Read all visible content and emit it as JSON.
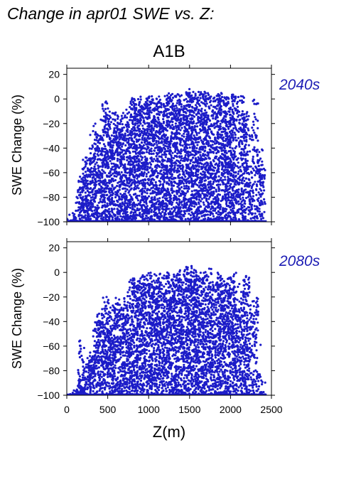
{
  "page": {
    "title": "Change in apr01 SWE vs. Z:",
    "scenario": "A1B"
  },
  "colors": {
    "points": "#1c1cc8",
    "label": "#1c1cb4",
    "axis": "#000000"
  },
  "chart_data": [
    {
      "type": "scatter",
      "period_label": "2040s",
      "ylabel": "SWE Change (%)",
      "xlim": [
        0,
        2500
      ],
      "ylim": [
        -100,
        25
      ],
      "xticks": [
        0,
        500,
        1000,
        1500,
        2000,
        2500
      ],
      "yticks": [
        -100,
        -80,
        -60,
        -40,
        -20,
        0,
        20
      ],
      "x_tick_labels_shown": false,
      "grid": false,
      "point_bands": [
        {
          "x": 60,
          "y_top": -97
        },
        {
          "x": 95,
          "y_top": -93
        },
        {
          "x": 120,
          "y_top": -90
        },
        {
          "x": 150,
          "y_top": -73
        },
        {
          "x": 175,
          "y_top": -63
        },
        {
          "x": 200,
          "y_top": -55
        },
        {
          "x": 230,
          "y_top": -60
        },
        {
          "x": 260,
          "y_top": -47
        },
        {
          "x": 290,
          "y_top": -40
        },
        {
          "x": 320,
          "y_top": -40
        },
        {
          "x": 350,
          "y_top": -20
        },
        {
          "x": 380,
          "y_top": -28
        },
        {
          "x": 410,
          "y_top": -38
        },
        {
          "x": 440,
          "y_top": -25
        },
        {
          "x": 470,
          "y_top": 0
        },
        {
          "x": 500,
          "y_top": -10
        },
        {
          "x": 530,
          "y_top": -15
        },
        {
          "x": 560,
          "y_top": -22
        },
        {
          "x": 590,
          "y_top": -10
        },
        {
          "x": 620,
          "y_top": -18
        },
        {
          "x": 650,
          "y_top": -16
        },
        {
          "x": 680,
          "y_top": -25
        },
        {
          "x": 710,
          "y_top": -8
        },
        {
          "x": 740,
          "y_top": -15
        },
        {
          "x": 770,
          "y_top": -5
        },
        {
          "x": 800,
          "y_top": 0
        },
        {
          "x": 830,
          "y_top": 2
        },
        {
          "x": 860,
          "y_top": 0
        },
        {
          "x": 890,
          "y_top": -3
        },
        {
          "x": 920,
          "y_top": 2
        },
        {
          "x": 950,
          "y_top": 0
        },
        {
          "x": 980,
          "y_top": 0
        },
        {
          "x": 1010,
          "y_top": 3
        },
        {
          "x": 1040,
          "y_top": 0
        },
        {
          "x": 1070,
          "y_top": -8
        },
        {
          "x": 1100,
          "y_top": 0
        },
        {
          "x": 1130,
          "y_top": 3
        },
        {
          "x": 1160,
          "y_top": 0
        },
        {
          "x": 1190,
          "y_top": -5
        },
        {
          "x": 1220,
          "y_top": 4
        },
        {
          "x": 1250,
          "y_top": 0
        },
        {
          "x": 1280,
          "y_top": 5
        },
        {
          "x": 1310,
          "y_top": -5
        },
        {
          "x": 1340,
          "y_top": 3
        },
        {
          "x": 1370,
          "y_top": 6
        },
        {
          "x": 1400,
          "y_top": 0
        },
        {
          "x": 1430,
          "y_top": -3
        },
        {
          "x": 1460,
          "y_top": 5
        },
        {
          "x": 1490,
          "y_top": 8
        },
        {
          "x": 1520,
          "y_top": 6
        },
        {
          "x": 1550,
          "y_top": 5
        },
        {
          "x": 1580,
          "y_top": 3
        },
        {
          "x": 1610,
          "y_top": 6
        },
        {
          "x": 1640,
          "y_top": 5
        },
        {
          "x": 1670,
          "y_top": 5
        },
        {
          "x": 1700,
          "y_top": 6
        },
        {
          "x": 1730,
          "y_top": 5
        },
        {
          "x": 1760,
          "y_top": -10
        },
        {
          "x": 1790,
          "y_top": -55
        },
        {
          "x": 1820,
          "y_top": 2
        },
        {
          "x": 1850,
          "y_top": 5
        },
        {
          "x": 1880,
          "y_top": 4
        },
        {
          "x": 1910,
          "y_top": 0
        },
        {
          "x": 1940,
          "y_top": 3
        },
        {
          "x": 1970,
          "y_top": -10
        },
        {
          "x": 2000,
          "y_top": 5
        },
        {
          "x": 2030,
          "y_top": 4
        },
        {
          "x": 2060,
          "y_top": 0
        },
        {
          "x": 2090,
          "y_top": -60
        },
        {
          "x": 2130,
          "y_top": 3
        },
        {
          "x": 2170,
          "y_top": -8
        },
        {
          "x": 2200,
          "y_top": -10
        },
        {
          "x": 2230,
          "y_top": -55
        },
        {
          "x": 2270,
          "y_top": -85
        },
        {
          "x": 2300,
          "y_top": 0
        },
        {
          "x": 2350,
          "y_top": -40
        },
        {
          "x": 2390,
          "y_top": -52
        }
      ]
    },
    {
      "type": "scatter",
      "period_label": "2080s",
      "xlabel": "Z(m)",
      "ylabel": "SWE Change (%)",
      "xlim": [
        0,
        2500
      ],
      "ylim": [
        -100,
        25
      ],
      "xticks": [
        0,
        500,
        1000,
        1500,
        2000,
        2500
      ],
      "yticks": [
        -100,
        -80,
        -60,
        -40,
        -20,
        0,
        20
      ],
      "x_tick_labels_shown": true,
      "grid": false,
      "point_bands": [
        {
          "x": 60,
          "y_top": -99
        },
        {
          "x": 95,
          "y_top": -98
        },
        {
          "x": 120,
          "y_top": -95
        },
        {
          "x": 150,
          "y_top": -90
        },
        {
          "x": 175,
          "y_top": -55
        },
        {
          "x": 200,
          "y_top": -85
        },
        {
          "x": 230,
          "y_top": -75
        },
        {
          "x": 260,
          "y_top": -72
        },
        {
          "x": 290,
          "y_top": -68
        },
        {
          "x": 320,
          "y_top": -60
        },
        {
          "x": 350,
          "y_top": -45
        },
        {
          "x": 380,
          "y_top": -40
        },
        {
          "x": 410,
          "y_top": -33
        },
        {
          "x": 440,
          "y_top": -40
        },
        {
          "x": 470,
          "y_top": -20
        },
        {
          "x": 500,
          "y_top": -25
        },
        {
          "x": 530,
          "y_top": -35
        },
        {
          "x": 560,
          "y_top": -28
        },
        {
          "x": 590,
          "y_top": -20
        },
        {
          "x": 620,
          "y_top": -30
        },
        {
          "x": 650,
          "y_top": -25
        },
        {
          "x": 680,
          "y_top": -30
        },
        {
          "x": 710,
          "y_top": -20
        },
        {
          "x": 740,
          "y_top": -25
        },
        {
          "x": 770,
          "y_top": -15
        },
        {
          "x": 800,
          "y_top": -5
        },
        {
          "x": 830,
          "y_top": -3
        },
        {
          "x": 860,
          "y_top": -10
        },
        {
          "x": 890,
          "y_top": -5
        },
        {
          "x": 920,
          "y_top": -2
        },
        {
          "x": 950,
          "y_top": -8
        },
        {
          "x": 980,
          "y_top": -3
        },
        {
          "x": 1010,
          "y_top": 0
        },
        {
          "x": 1040,
          "y_top": -10
        },
        {
          "x": 1070,
          "y_top": -5
        },
        {
          "x": 1100,
          "y_top": 0
        },
        {
          "x": 1130,
          "y_top": -8
        },
        {
          "x": 1160,
          "y_top": 0
        },
        {
          "x": 1190,
          "y_top": -12
        },
        {
          "x": 1220,
          "y_top": -3
        },
        {
          "x": 1250,
          "y_top": 2
        },
        {
          "x": 1280,
          "y_top": -5
        },
        {
          "x": 1310,
          "y_top": -10
        },
        {
          "x": 1340,
          "y_top": 0
        },
        {
          "x": 1370,
          "y_top": 3
        },
        {
          "x": 1400,
          "y_top": -5
        },
        {
          "x": 1430,
          "y_top": -8
        },
        {
          "x": 1460,
          "y_top": 2
        },
        {
          "x": 1490,
          "y_top": 6
        },
        {
          "x": 1520,
          "y_top": 5
        },
        {
          "x": 1550,
          "y_top": 3
        },
        {
          "x": 1580,
          "y_top": -5
        },
        {
          "x": 1610,
          "y_top": 0
        },
        {
          "x": 1640,
          "y_top": -5
        },
        {
          "x": 1670,
          "y_top": 2
        },
        {
          "x": 1700,
          "y_top": -3
        },
        {
          "x": 1730,
          "y_top": 4
        },
        {
          "x": 1760,
          "y_top": -10
        },
        {
          "x": 1790,
          "y_top": -40
        },
        {
          "x": 1820,
          "y_top": -5
        },
        {
          "x": 1850,
          "y_top": 0
        },
        {
          "x": 1880,
          "y_top": -5
        },
        {
          "x": 1910,
          "y_top": -8
        },
        {
          "x": 1940,
          "y_top": -5
        },
        {
          "x": 1970,
          "y_top": -15
        },
        {
          "x": 2000,
          "y_top": -3
        },
        {
          "x": 2030,
          "y_top": 0
        },
        {
          "x": 2060,
          "y_top": -10
        },
        {
          "x": 2090,
          "y_top": -30
        },
        {
          "x": 2130,
          "y_top": -5
        },
        {
          "x": 2170,
          "y_top": -15
        },
        {
          "x": 2200,
          "y_top": -2
        },
        {
          "x": 2230,
          "y_top": -30
        },
        {
          "x": 2270,
          "y_top": -85
        },
        {
          "x": 2300,
          "y_top": -20
        },
        {
          "x": 2350,
          "y_top": -80
        },
        {
          "x": 2390,
          "y_top": -97
        }
      ]
    }
  ]
}
